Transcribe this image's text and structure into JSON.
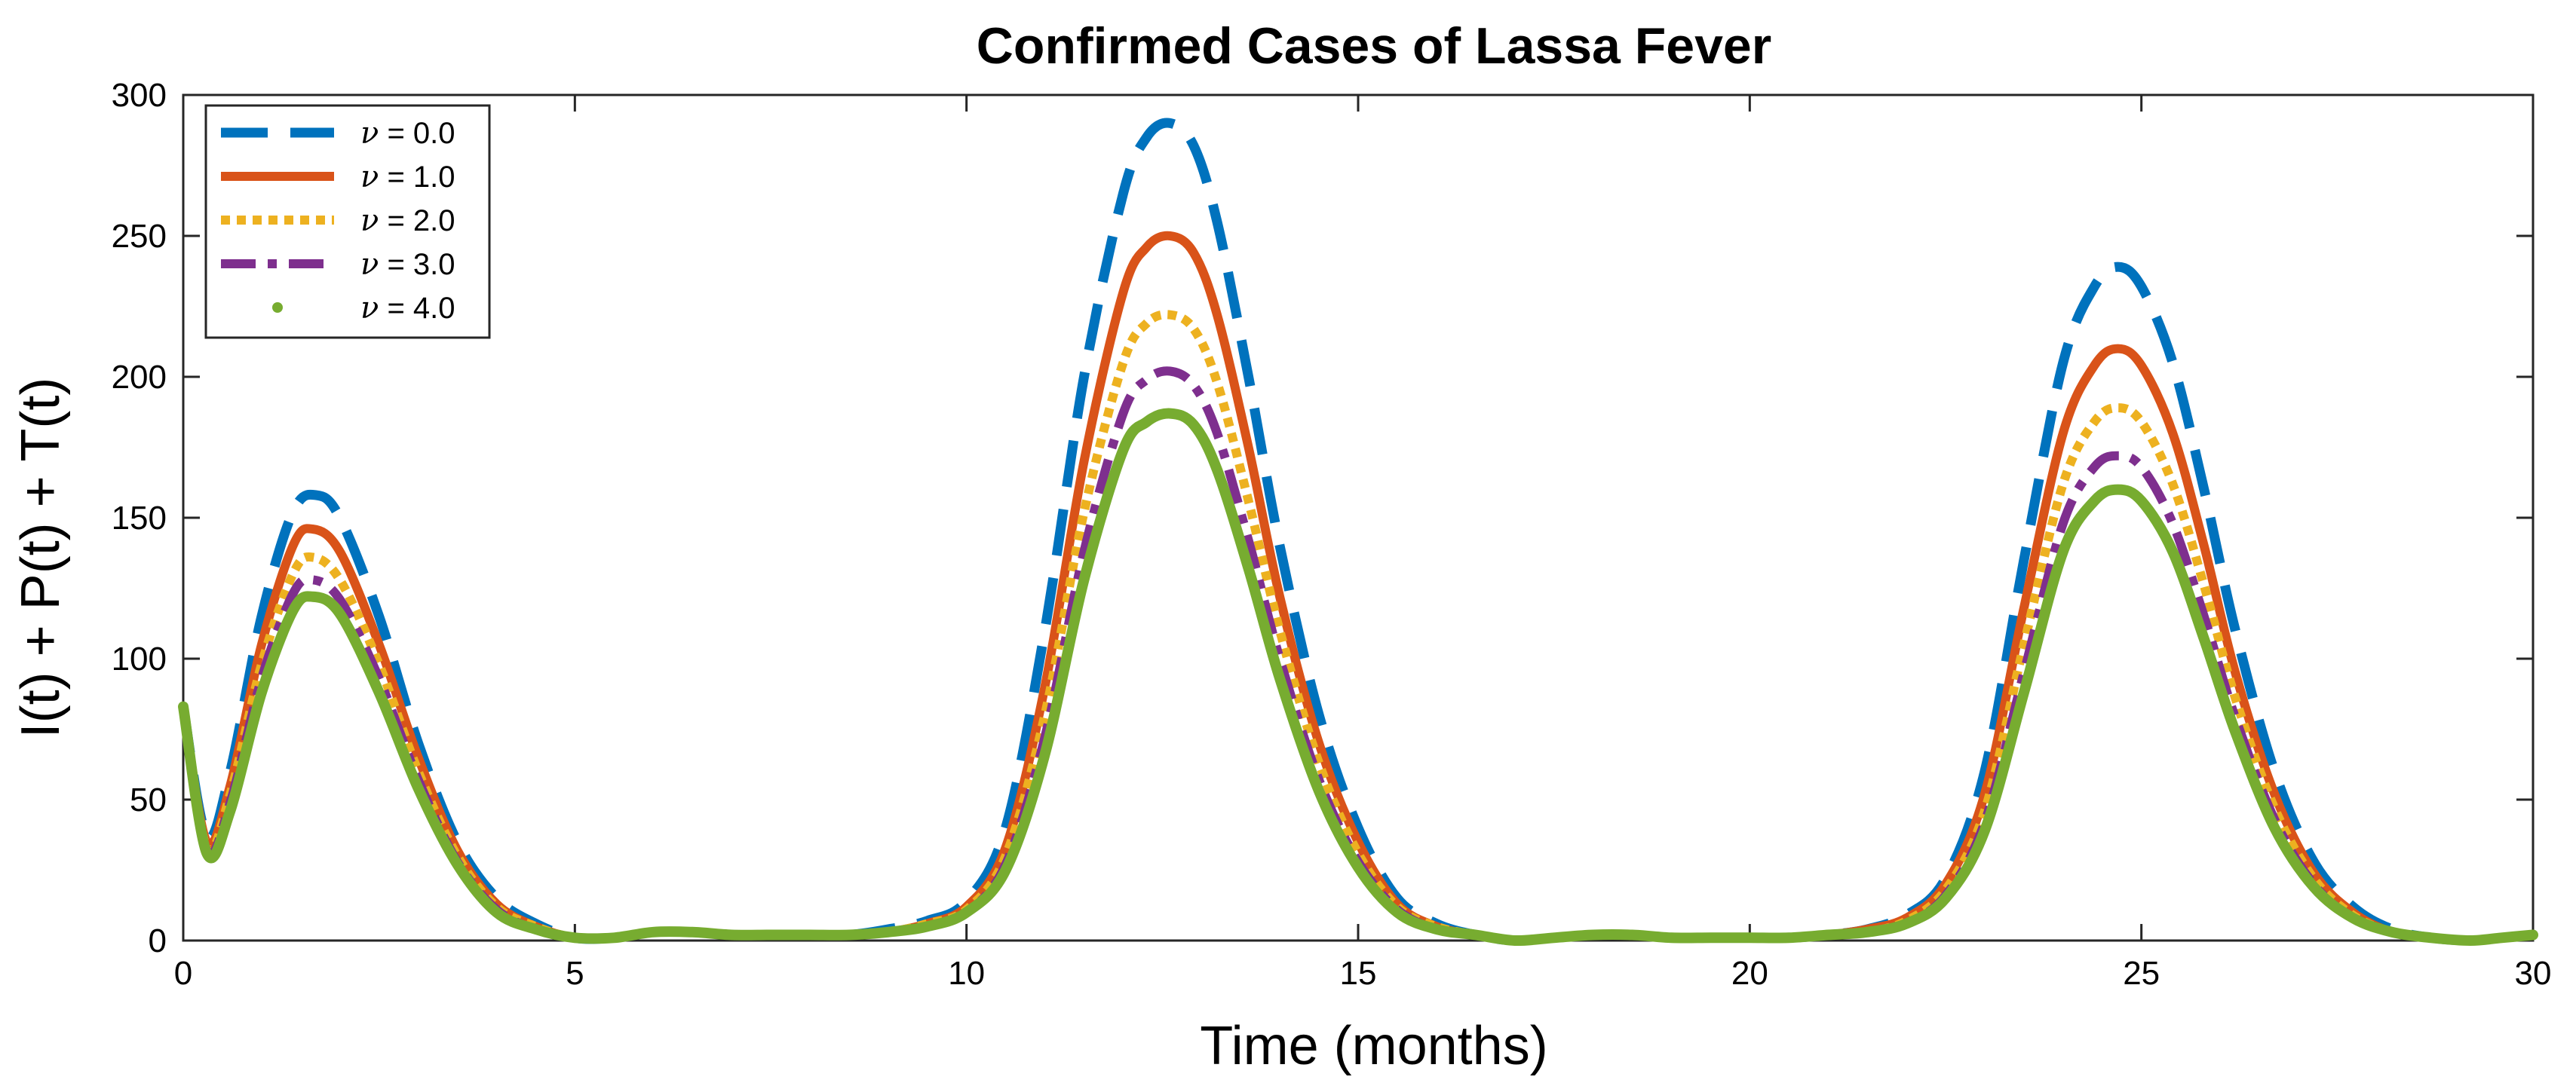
{
  "chart_data": {
    "type": "line",
    "title": "Confirmed Cases of Lassa Fever",
    "xlabel": "Time (months)",
    "ylabel": "I(t) + P(t) + T(t)",
    "xlim": [
      0,
      30
    ],
    "ylim": [
      0,
      300
    ],
    "xticks": [
      0,
      5,
      10,
      15,
      20,
      25,
      30
    ],
    "yticks": [
      0,
      50,
      100,
      150,
      200,
      250,
      300
    ],
    "grid": false,
    "legend_position": "top-left",
    "series": [
      {
        "name": "ν = 0.0",
        "legend_symbol": "ν",
        "legend_value": "= 0.0",
        "color": "#0072BD",
        "style": "dashed",
        "x": [
          0,
          0.3,
          0.6,
          1.0,
          1.4,
          1.7,
          2.0,
          2.5,
          3.0,
          3.5,
          4.0,
          4.5,
          5.0,
          5.5,
          6.0,
          6.5,
          7.0,
          7.5,
          8.0,
          8.5,
          9.0,
          9.5,
          10.0,
          10.5,
          11.0,
          11.5,
          12.0,
          12.3,
          12.6,
          12.9,
          13.2,
          13.6,
          14.0,
          14.5,
          15.0,
          15.5,
          16.0,
          16.5,
          17.0,
          17.5,
          18.0,
          18.5,
          19.0,
          19.5,
          20.0,
          20.5,
          21.0,
          21.5,
          22.0,
          22.5,
          23.0,
          23.5,
          24.0,
          24.4,
          24.7,
          25.0,
          25.4,
          25.8,
          26.2,
          26.7,
          27.2,
          27.7,
          28.2,
          28.7,
          29.2,
          29.6,
          30.0
        ],
        "values": [
          83,
          37,
          60,
          115,
          152,
          158,
          150,
          115,
          70,
          35,
          15,
          6,
          1,
          1,
          3,
          3,
          2,
          2,
          2,
          2,
          4,
          7,
          14,
          40,
          110,
          200,
          265,
          285,
          290,
          282,
          255,
          200,
          140,
          80,
          40,
          15,
          6,
          2,
          0,
          1,
          2,
          2,
          1,
          1,
          1,
          1,
          2,
          4,
          9,
          22,
          60,
          135,
          205,
          232,
          239,
          232,
          205,
          160,
          110,
          60,
          28,
          12,
          4,
          1,
          0,
          1,
          2
        ]
      },
      {
        "name": "ν = 1.0",
        "legend_symbol": "ν",
        "legend_value": "= 1.0",
        "color": "#D95319",
        "style": "solid",
        "x": [
          0,
          0.3,
          0.6,
          1.0,
          1.4,
          1.65,
          2.0,
          2.5,
          3.0,
          3.5,
          4.0,
          4.5,
          5.0,
          5.5,
          6.0,
          6.5,
          7.0,
          7.5,
          8.0,
          8.5,
          9.0,
          9.5,
          10.0,
          10.5,
          11.0,
          11.5,
          12.0,
          12.3,
          12.6,
          12.9,
          13.2,
          13.6,
          14.0,
          14.5,
          15.0,
          15.5,
          16.0,
          16.5,
          17.0,
          17.5,
          18.0,
          18.5,
          19.0,
          19.5,
          20.0,
          20.5,
          21.0,
          21.5,
          22.0,
          22.5,
          23.0,
          23.5,
          24.0,
          24.4,
          24.7,
          25.0,
          25.4,
          25.8,
          26.2,
          26.7,
          27.2,
          27.7,
          28.2,
          28.7,
          29.2,
          29.6,
          30.0
        ],
        "values": [
          83,
          35,
          55,
          105,
          140,
          146,
          138,
          105,
          65,
          32,
          13,
          5,
          1,
          1,
          3,
          3,
          2,
          2,
          2,
          2,
          3,
          6,
          12,
          33,
          90,
          170,
          230,
          246,
          250,
          244,
          222,
          175,
          122,
          70,
          35,
          13,
          5,
          2,
          0,
          1,
          2,
          2,
          1,
          1,
          1,
          1,
          2,
          4,
          8,
          20,
          52,
          118,
          180,
          204,
          210,
          204,
          180,
          140,
          95,
          52,
          24,
          10,
          3,
          1,
          0,
          1,
          2
        ]
      },
      {
        "name": "ν = 2.0",
        "legend_symbol": "ν",
        "legend_value": "= 2.0",
        "color": "#EDB120",
        "style": "dotted",
        "x": [
          0,
          0.3,
          0.6,
          1.0,
          1.4,
          1.65,
          2.0,
          2.5,
          3.0,
          3.5,
          4.0,
          4.5,
          5.0,
          5.5,
          6.0,
          6.5,
          7.0,
          7.5,
          8.0,
          8.5,
          9.0,
          9.5,
          10.0,
          10.5,
          11.0,
          11.5,
          12.0,
          12.3,
          12.6,
          12.9,
          13.2,
          13.6,
          14.0,
          14.5,
          15.0,
          15.5,
          16.0,
          16.5,
          17.0,
          17.5,
          18.0,
          18.5,
          19.0,
          19.5,
          20.0,
          20.5,
          21.0,
          21.5,
          22.0,
          22.5,
          23.0,
          23.5,
          24.0,
          24.4,
          24.7,
          25.0,
          25.4,
          25.8,
          26.2,
          26.7,
          27.2,
          27.7,
          28.2,
          28.7,
          29.2,
          29.6,
          30.0
        ],
        "values": [
          83,
          33,
          52,
          98,
          130,
          136,
          128,
          98,
          60,
          30,
          12,
          5,
          1,
          1,
          3,
          3,
          2,
          2,
          2,
          2,
          3,
          6,
          11,
          30,
          80,
          152,
          205,
          219,
          222,
          217,
          198,
          156,
          110,
          63,
          31,
          12,
          5,
          2,
          0,
          1,
          2,
          2,
          1,
          1,
          1,
          1,
          2,
          3,
          7,
          18,
          46,
          105,
          162,
          184,
          189,
          184,
          162,
          126,
          86,
          47,
          22,
          9,
          3,
          1,
          0,
          1,
          2
        ]
      },
      {
        "name": "ν = 3.0",
        "legend_symbol": "ν",
        "legend_value": "= 3.0",
        "color": "#7E2F8E",
        "style": "dashdot",
        "x": [
          0,
          0.3,
          0.6,
          1.0,
          1.4,
          1.65,
          2.0,
          2.5,
          3.0,
          3.5,
          4.0,
          4.5,
          5.0,
          5.5,
          6.0,
          6.5,
          7.0,
          7.5,
          8.0,
          8.5,
          9.0,
          9.5,
          10.0,
          10.5,
          11.0,
          11.5,
          12.0,
          12.3,
          12.6,
          12.9,
          13.2,
          13.6,
          14.0,
          14.5,
          15.0,
          15.5,
          16.0,
          16.5,
          17.0,
          17.5,
          18.0,
          18.5,
          19.0,
          19.5,
          20.0,
          20.5,
          21.0,
          21.5,
          22.0,
          22.5,
          23.0,
          23.5,
          24.0,
          24.4,
          24.7,
          25.0,
          25.4,
          25.8,
          26.2,
          26.7,
          27.2,
          27.7,
          28.2,
          28.7,
          29.2,
          29.6,
          30.0
        ],
        "values": [
          83,
          32,
          49,
          93,
          123,
          128,
          121,
          93,
          57,
          28,
          11,
          4,
          1,
          1,
          3,
          3,
          2,
          2,
          2,
          2,
          3,
          5,
          10,
          27,
          72,
          138,
          187,
          199,
          202,
          197,
          180,
          142,
          100,
          57,
          28,
          11,
          4,
          2,
          0,
          1,
          2,
          2,
          1,
          1,
          1,
          1,
          2,
          3,
          6,
          16,
          42,
          95,
          148,
          168,
          172,
          168,
          148,
          115,
          79,
          43,
          20,
          8,
          3,
          1,
          0,
          1,
          2
        ]
      },
      {
        "name": "ν = 4.0",
        "legend_symbol": "ν",
        "legend_value": "= 4.0",
        "color": "#77AC30",
        "style": "dots",
        "x": [
          0,
          0.3,
          0.6,
          1.0,
          1.4,
          1.65,
          2.0,
          2.5,
          3.0,
          3.5,
          4.0,
          4.5,
          5.0,
          5.5,
          6.0,
          6.5,
          7.0,
          7.5,
          8.0,
          8.5,
          9.0,
          9.5,
          10.0,
          10.5,
          11.0,
          11.5,
          12.0,
          12.3,
          12.6,
          12.9,
          13.2,
          13.6,
          14.0,
          14.5,
          15.0,
          15.5,
          16.0,
          16.5,
          17.0,
          17.5,
          18.0,
          18.5,
          19.0,
          19.5,
          20.0,
          20.5,
          21.0,
          21.5,
          22.0,
          22.5,
          23.0,
          23.5,
          24.0,
          24.4,
          24.7,
          25.0,
          25.4,
          25.8,
          26.2,
          26.7,
          27.2,
          27.7,
          28.2,
          28.7,
          29.2,
          29.6,
          30.0
        ],
        "values": [
          83,
          31,
          46,
          88,
          117,
          122,
          116,
          88,
          54,
          27,
          10,
          4,
          1,
          1,
          3,
          3,
          2,
          2,
          2,
          2,
          3,
          5,
          10,
          25,
          66,
          128,
          174,
          184,
          187,
          183,
          167,
          132,
          93,
          53,
          26,
          10,
          4,
          2,
          0,
          1,
          2,
          2,
          1,
          1,
          1,
          1,
          2,
          3,
          6,
          15,
          39,
          88,
          138,
          156,
          160,
          156,
          138,
          107,
          74,
          40,
          19,
          8,
          3,
          1,
          0,
          1,
          2
        ]
      }
    ]
  }
}
